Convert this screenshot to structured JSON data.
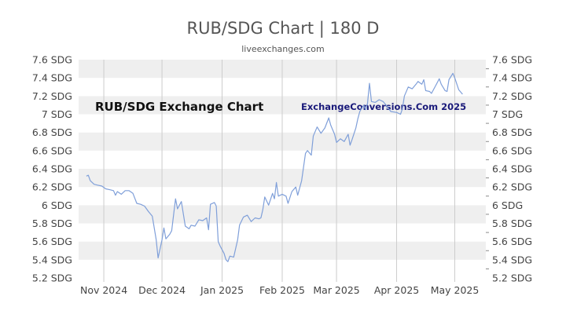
{
  "chart_data": {
    "type": "line",
    "title": "RUB/SDG Chart | 180 D",
    "subtitle": "liveexchanges.com",
    "watermark_left": "RUB/SDG Exchange Chart",
    "watermark_right": "ExchangeConversions.Com 2025",
    "ylim": [
      5.2,
      7.6
    ],
    "y_ticks": [
      5.2,
      5.4,
      5.6,
      5.8,
      6.0,
      6.2,
      6.4,
      6.6,
      6.8,
      7.0,
      7.2,
      7.4,
      7.6
    ],
    "y_tick_labels": [
      "5.2 SDG",
      "5.4 SDG",
      "5.6 SDG",
      "5.8 SDG",
      "6 SDG",
      "6.2 SDG",
      "6.4 SDG",
      "6.6 SDG",
      "6.8 SDG",
      "7 SDG",
      "7.2 SDG",
      "7.4 SDG",
      "7.6 SDG"
    ],
    "x_tick_labels": [
      "Nov 2024",
      "Dec 2024",
      "Jan 2025",
      "Feb 2025",
      "Mar 2025",
      "Apr 2025",
      "May 2025"
    ],
    "x_tick_dates": [
      "2024-11-01",
      "2024-12-01",
      "2025-01-01",
      "2025-02-01",
      "2025-03-01",
      "2025-04-01",
      "2025-05-01"
    ],
    "xlim": [
      "2024-10-19",
      "2025-05-17"
    ],
    "grid": "alternating horizontal bands, vertical month lines",
    "line_color": "#7f9fd9",
    "series": [
      {
        "points": [
          [
            "2024-10-23",
            6.32
          ],
          [
            "2024-10-24",
            6.33
          ],
          [
            "2024-10-25",
            6.27
          ],
          [
            "2024-10-27",
            6.23
          ],
          [
            "2024-10-29",
            6.22
          ],
          [
            "2024-10-31",
            6.21
          ],
          [
            "2024-11-02",
            6.18
          ],
          [
            "2024-11-04",
            6.17
          ],
          [
            "2024-11-06",
            6.16
          ],
          [
            "2024-11-07",
            6.11
          ],
          [
            "2024-11-08",
            6.15
          ],
          [
            "2024-11-10",
            6.12
          ],
          [
            "2024-11-12",
            6.16
          ],
          [
            "2024-11-14",
            6.16
          ],
          [
            "2024-11-16",
            6.13
          ],
          [
            "2024-11-18",
            6.02
          ],
          [
            "2024-11-20",
            6.01
          ],
          [
            "2024-11-22",
            5.99
          ],
          [
            "2024-11-24",
            5.93
          ],
          [
            "2024-11-26",
            5.88
          ],
          [
            "2024-11-28",
            5.62
          ],
          [
            "2024-11-29",
            5.42
          ],
          [
            "2024-12-01",
            5.62
          ],
          [
            "2024-12-02",
            5.75
          ],
          [
            "2024-12-03",
            5.63
          ],
          [
            "2024-12-05",
            5.68
          ],
          [
            "2024-12-06",
            5.72
          ],
          [
            "2024-12-07",
            5.9
          ],
          [
            "2024-12-08",
            6.07
          ],
          [
            "2024-12-09",
            5.96
          ],
          [
            "2024-12-11",
            6.04
          ],
          [
            "2024-12-13",
            5.77
          ],
          [
            "2024-12-15",
            5.74
          ],
          [
            "2024-12-16",
            5.78
          ],
          [
            "2024-12-18",
            5.77
          ],
          [
            "2024-12-20",
            5.84
          ],
          [
            "2024-12-22",
            5.83
          ],
          [
            "2024-12-24",
            5.86
          ],
          [
            "2024-12-25",
            5.73
          ],
          [
            "2024-12-26",
            6.01
          ],
          [
            "2024-12-28",
            6.03
          ],
          [
            "2024-12-29",
            5.99
          ],
          [
            "2024-12-30",
            5.6
          ],
          [
            "2024-12-31",
            5.55
          ],
          [
            "2025-01-02",
            5.47
          ],
          [
            "2025-01-03",
            5.4
          ],
          [
            "2025-01-04",
            5.38
          ],
          [
            "2025-01-05",
            5.44
          ],
          [
            "2025-01-07",
            5.43
          ],
          [
            "2025-01-09",
            5.62
          ],
          [
            "2025-01-10",
            5.78
          ],
          [
            "2025-01-12",
            5.87
          ],
          [
            "2025-01-14",
            5.89
          ],
          [
            "2025-01-16",
            5.82
          ],
          [
            "2025-01-18",
            5.86
          ],
          [
            "2025-01-20",
            5.85
          ],
          [
            "2025-01-21",
            5.86
          ],
          [
            "2025-01-22",
            5.95
          ],
          [
            "2025-01-23",
            6.09
          ],
          [
            "2025-01-25",
            6.0
          ],
          [
            "2025-01-27",
            6.13
          ],
          [
            "2025-01-28",
            6.07
          ],
          [
            "2025-01-29",
            6.25
          ],
          [
            "2025-01-30",
            6.1
          ],
          [
            "2025-02-01",
            6.12
          ],
          [
            "2025-02-03",
            6.1
          ],
          [
            "2025-02-04",
            6.02
          ],
          [
            "2025-02-06",
            6.15
          ],
          [
            "2025-02-08",
            6.2
          ],
          [
            "2025-02-09",
            6.11
          ],
          [
            "2025-02-11",
            6.27
          ],
          [
            "2025-02-13",
            6.57
          ],
          [
            "2025-02-14",
            6.6
          ],
          [
            "2025-02-16",
            6.55
          ],
          [
            "2025-02-17",
            6.76
          ],
          [
            "2025-02-19",
            6.86
          ],
          [
            "2025-02-21",
            6.79
          ],
          [
            "2025-02-23",
            6.85
          ],
          [
            "2025-02-25",
            6.96
          ],
          [
            "2025-02-26",
            6.88
          ],
          [
            "2025-02-28",
            6.78
          ],
          [
            "2025-03-01",
            6.69
          ],
          [
            "2025-03-03",
            6.73
          ],
          [
            "2025-03-05",
            6.7
          ],
          [
            "2025-03-07",
            6.78
          ],
          [
            "2025-03-08",
            6.66
          ],
          [
            "2025-03-09",
            6.72
          ],
          [
            "2025-03-11",
            6.85
          ],
          [
            "2025-03-12",
            6.95
          ],
          [
            "2025-03-13",
            7.03
          ],
          [
            "2025-03-15",
            7.1
          ],
          [
            "2025-03-16",
            7.05
          ],
          [
            "2025-03-17",
            7.12
          ],
          [
            "2025-03-18",
            7.34
          ],
          [
            "2025-03-19",
            7.14
          ],
          [
            "2025-03-21",
            7.13
          ],
          [
            "2025-03-23",
            7.16
          ],
          [
            "2025-03-25",
            7.14
          ],
          [
            "2025-03-27",
            7.09
          ],
          [
            "2025-03-29",
            7.03
          ],
          [
            "2025-04-01",
            7.02
          ],
          [
            "2025-04-03",
            7.0
          ],
          [
            "2025-04-04",
            7.06
          ],
          [
            "2025-04-05",
            7.2
          ],
          [
            "2025-04-07",
            7.3
          ],
          [
            "2025-04-09",
            7.28
          ],
          [
            "2025-04-11",
            7.33
          ],
          [
            "2025-04-12",
            7.36
          ],
          [
            "2025-04-14",
            7.33
          ],
          [
            "2025-04-15",
            7.38
          ],
          [
            "2025-04-16",
            7.26
          ],
          [
            "2025-04-18",
            7.25
          ],
          [
            "2025-04-19",
            7.23
          ],
          [
            "2025-04-21",
            7.31
          ],
          [
            "2025-04-23",
            7.39
          ],
          [
            "2025-04-24",
            7.33
          ],
          [
            "2025-04-26",
            7.26
          ],
          [
            "2025-04-27",
            7.25
          ],
          [
            "2025-04-28",
            7.38
          ],
          [
            "2025-04-30",
            7.45
          ],
          [
            "2025-05-01",
            7.4
          ],
          [
            "2025-05-03",
            7.27
          ],
          [
            "2025-05-05",
            7.22
          ]
        ]
      }
    ]
  }
}
